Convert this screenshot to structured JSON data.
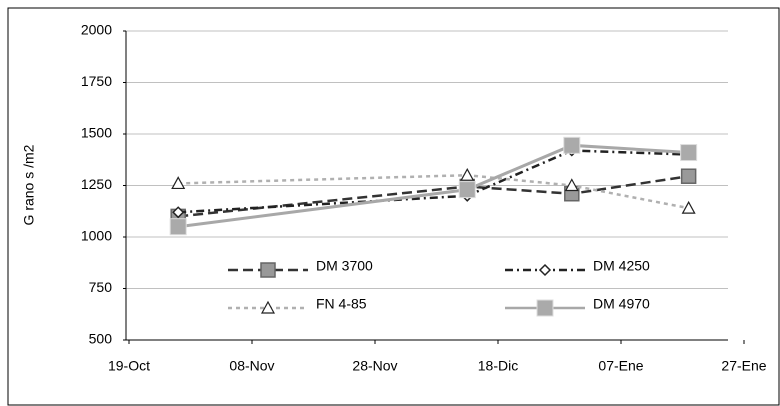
{
  "chart_data": {
    "type": "line",
    "y_label": "G rano s /m2",
    "x": [
      8,
      55,
      72,
      91
    ],
    "xlim": [
      0,
      100
    ],
    "xticks": [
      {
        "value": 0,
        "label": "19-Oct"
      },
      {
        "value": 20,
        "label": "08-Nov"
      },
      {
        "value": 40,
        "label": "28-Nov"
      },
      {
        "value": 60,
        "label": "18-Dic"
      },
      {
        "value": 80,
        "label": "07-Ene"
      },
      {
        "value": 100,
        "label": "27-Ene"
      }
    ],
    "ylim": [
      500,
      2000
    ],
    "yticks": [
      500,
      750,
      1000,
      1250,
      1500,
      1750,
      2000
    ],
    "grid": true,
    "series": [
      {
        "name": "DM 3700",
        "color": "#333333",
        "marker": "square",
        "dash": "10,5",
        "values": [
          1100,
          1245,
          1210,
          1295
        ]
      },
      {
        "name": "DM 4250",
        "color": "#222222",
        "marker": "diamond",
        "dash": "8,4,2,4",
        "values": [
          1120,
          1200,
          1420,
          1400
        ]
      },
      {
        "name": "FN 4-85",
        "color": "#b0b0b0",
        "marker": "triangle",
        "dash": "4,4",
        "values": [
          1260,
          1300,
          1250,
          1140
        ]
      },
      {
        "name": "DM 4970",
        "color": "#a8a8a8",
        "marker": "star-square",
        "dash": "",
        "values": [
          1050,
          1230,
          1445,
          1410
        ]
      }
    ]
  }
}
